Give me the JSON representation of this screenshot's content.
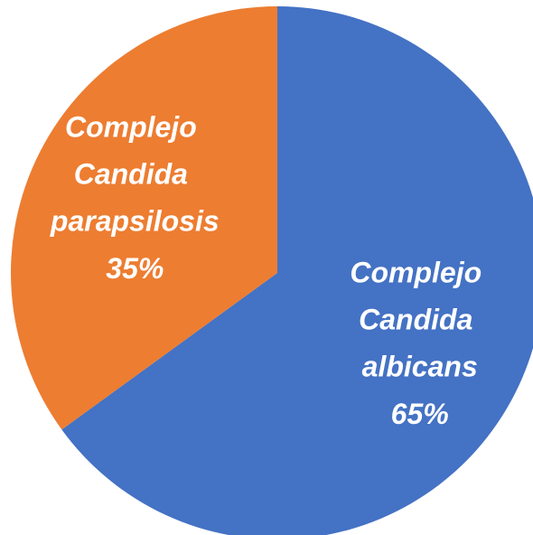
{
  "chart_data": {
    "type": "pie",
    "categories": [
      "Complejo Candida albicans",
      "Complejo Candida parapsilosis"
    ],
    "values": [
      65,
      35
    ],
    "value_labels": [
      "65%",
      "35%"
    ],
    "colors": [
      "#4472c4",
      "#ed7d31"
    ]
  }
}
